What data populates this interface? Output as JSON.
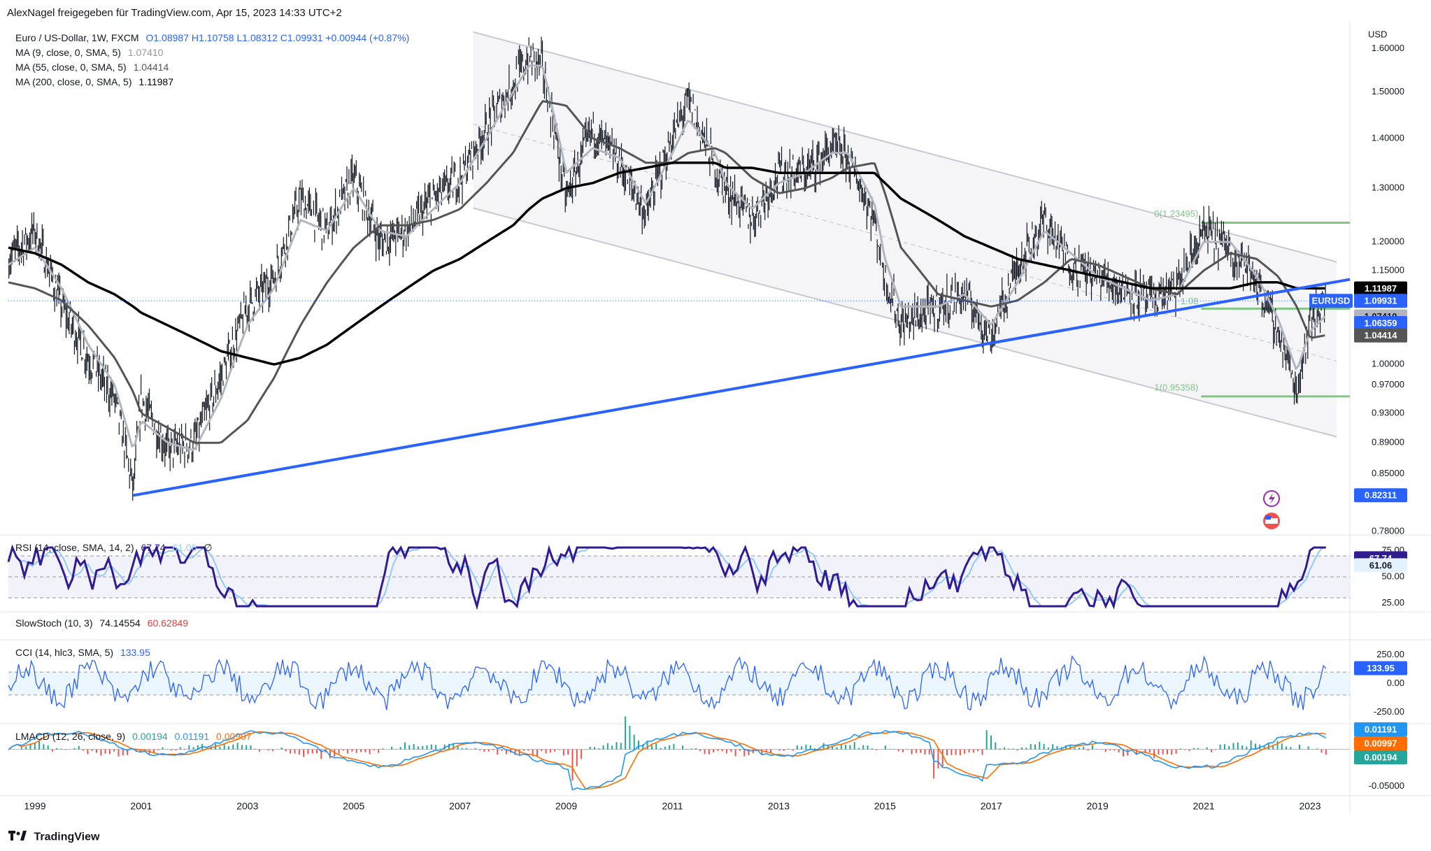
{
  "header": {
    "publisher": "AlexNagel freigegeben für TradingView.com, Apr 15, 2023 14:33 UTC+2"
  },
  "legend": {
    "main": {
      "label": "Euro / US-Dollar, 1W, FXCM",
      "ohlc": "O1.08987  H1.10758  L1.08312  C1.09931  +0.00944 (+0.87%)"
    },
    "ma9": {
      "label": "MA (9, close, 0, SMA, 5)",
      "value": "1.07410"
    },
    "ma55": {
      "label": "MA (55, close, 0, SMA, 5)",
      "value": "1.04414"
    },
    "ma200": {
      "label": "MA (200, close, 0, SMA, 5)",
      "value": "1.11987"
    },
    "rsi": {
      "label": "RSI (14, close, SMA, 14, 2)",
      "value": "67.74",
      "value2": "61.06",
      "value3": "∅"
    },
    "stoch": {
      "label": "SlowStoch (10, 3)",
      "value": "74.14554",
      "value2": "60.62849"
    },
    "cci": {
      "label": "CCI (14, hlc3, SMA, 5)",
      "value": "133.95"
    },
    "macd": {
      "label": "LMACD (12, 26, close, 9)",
      "value": "0.00194",
      "value2": "0.01191",
      "value3": "0.00997"
    }
  },
  "price_axis": {
    "currency": "USD",
    "ticks": [
      "1.60000",
      "1.50000",
      "1.40000",
      "1.30000",
      "1.20000",
      "1.15000",
      "1.10000",
      "1.05000",
      "1.00000",
      "0.97000",
      "0.93000",
      "0.89000",
      "0.85000",
      "0.78000"
    ],
    "badges": [
      {
        "text": "1.11987",
        "bg": "#000000",
        "fg": "#ffffff",
        "value": 1.11987
      },
      {
        "text": "1.09931",
        "bg": "#2962ff",
        "fg": "#ffffff",
        "value": 1.09931
      },
      {
        "text": "1.07410",
        "bg": "#b2b5be",
        "fg": "#131722",
        "value": 1.0741
      },
      {
        "text": "1.06359",
        "bg": "#2962ff",
        "fg": "#ffffff",
        "value": 1.06359
      },
      {
        "text": "1.04414",
        "bg": "#555555",
        "fg": "#ffffff",
        "value": 1.04414
      },
      {
        "text": "0.82311",
        "bg": "#2962ff",
        "fg": "#ffffff",
        "value": 0.82311
      }
    ],
    "symbol_tag": "EURUSD"
  },
  "rsi_axis": {
    "ticks": [
      "75.00",
      "50.00",
      "25.00"
    ],
    "badges": [
      "67.74",
      "61.06"
    ]
  },
  "cci_axis": {
    "ticks": [
      "250.00",
      "0.00",
      "-250.00"
    ],
    "badge": "133.95"
  },
  "macd_axis": {
    "ticks": [
      "-0.05000"
    ],
    "badges": [
      "0.01191",
      "0.00997",
      "0.00194"
    ]
  },
  "fib": {
    "top_label": "0(1.23495)",
    "bottom_label": "1(0.95358)",
    "mid_label": "1.08"
  },
  "x_axis": {
    "ticks": [
      "1999",
      "2001",
      "2003",
      "2005",
      "2007",
      "2009",
      "2011",
      "2013",
      "2015",
      "2017",
      "2019",
      "2021",
      "2023"
    ]
  },
  "footer": {
    "brand": "TradingView"
  },
  "colors": {
    "price": "#131722",
    "ma9": "#b2b5be",
    "ma55": "#555555",
    "ma200": "#000000",
    "trend": "#2962ff",
    "channel": "#c8c8d4",
    "fib": "#81c784",
    "rsi": "#311b92",
    "rsi_ma": "#90caf9",
    "cci": "#2962ff",
    "macd": "#2196f3",
    "signal": "#ff6d00",
    "hist_up": "#26a69a",
    "hist_dn": "#ef5350"
  },
  "chart_data": {
    "type": "line",
    "title": "Euro / US-Dollar, 1W, FXCM",
    "ylabel": "USD",
    "x": [
      1998.5,
      1999,
      1999.5,
      2000,
      2000.5,
      2000.85,
      2001,
      2001.5,
      2002,
      2002.5,
      2003,
      2003.5,
      2004,
      2004.5,
      2005,
      2005.5,
      2006,
      2006.5,
      2007,
      2007.5,
      2008,
      2008.3,
      2008.55,
      2009,
      2009.5,
      2010,
      2010.5,
      2011,
      2011.3,
      2011.8,
      2012,
      2012.5,
      2013,
      2013.5,
      2014,
      2014.3,
      2014.8,
      2015,
      2015.3,
      2016,
      2016.5,
      2017,
      2017.5,
      2018,
      2018.5,
      2019,
      2019.5,
      2020,
      2020.5,
      2021,
      2021.5,
      2022,
      2022.4,
      2022.75,
      2023,
      2023.28
    ],
    "series": [
      {
        "name": "EURUSD",
        "values": [
          1.17,
          1.22,
          1.09,
          1.01,
          0.95,
          0.83,
          0.95,
          0.88,
          0.89,
          0.98,
          1.09,
          1.14,
          1.28,
          1.22,
          1.32,
          1.2,
          1.22,
          1.28,
          1.32,
          1.42,
          1.52,
          1.58,
          1.56,
          1.28,
          1.42,
          1.35,
          1.25,
          1.4,
          1.48,
          1.34,
          1.3,
          1.24,
          1.33,
          1.33,
          1.38,
          1.36,
          1.24,
          1.14,
          1.06,
          1.09,
          1.11,
          1.04,
          1.16,
          1.24,
          1.16,
          1.14,
          1.12,
          1.1,
          1.12,
          1.22,
          1.19,
          1.13,
          1.05,
          0.96,
          1.07,
          1.0993
        ]
      },
      {
        "name": "MA (9, close, 0, SMA, 5)",
        "values": [
          1.16,
          1.19,
          1.12,
          1.03,
          0.97,
          0.88,
          0.92,
          0.89,
          0.88,
          0.95,
          1.06,
          1.12,
          1.24,
          1.22,
          1.3,
          1.22,
          1.21,
          1.26,
          1.31,
          1.4,
          1.5,
          1.56,
          1.56,
          1.33,
          1.38,
          1.36,
          1.27,
          1.37,
          1.44,
          1.37,
          1.31,
          1.26,
          1.31,
          1.33,
          1.37,
          1.37,
          1.27,
          1.17,
          1.09,
          1.09,
          1.11,
          1.06,
          1.13,
          1.22,
          1.18,
          1.14,
          1.12,
          1.1,
          1.11,
          1.2,
          1.2,
          1.14,
          1.07,
          0.99,
          1.05,
          1.0741
        ]
      },
      {
        "name": "MA (55, close, 0, SMA, 5)",
        "values": [
          1.13,
          1.12,
          1.1,
          1.06,
          1.01,
          0.96,
          0.93,
          0.91,
          0.89,
          0.89,
          0.92,
          0.98,
          1.06,
          1.13,
          1.19,
          1.23,
          1.23,
          1.24,
          1.26,
          1.31,
          1.37,
          1.43,
          1.48,
          1.47,
          1.4,
          1.38,
          1.35,
          1.35,
          1.37,
          1.38,
          1.37,
          1.32,
          1.29,
          1.3,
          1.32,
          1.34,
          1.35,
          1.29,
          1.19,
          1.11,
          1.1,
          1.09,
          1.1,
          1.13,
          1.17,
          1.16,
          1.14,
          1.12,
          1.11,
          1.15,
          1.18,
          1.17,
          1.14,
          1.09,
          1.04,
          1.04414
        ]
      },
      {
        "name": "MA (200, close, 0, SMA, 5)",
        "values": [
          1.19,
          1.18,
          1.16,
          1.13,
          1.11,
          1.09,
          1.08,
          1.06,
          1.04,
          1.02,
          1.01,
          1.0,
          1.01,
          1.03,
          1.06,
          1.09,
          1.12,
          1.15,
          1.17,
          1.2,
          1.23,
          1.26,
          1.28,
          1.3,
          1.31,
          1.33,
          1.34,
          1.35,
          1.35,
          1.35,
          1.34,
          1.34,
          1.33,
          1.33,
          1.33,
          1.33,
          1.33,
          1.31,
          1.28,
          1.24,
          1.21,
          1.19,
          1.17,
          1.16,
          1.15,
          1.14,
          1.13,
          1.12,
          1.12,
          1.12,
          1.12,
          1.13,
          1.13,
          1.12,
          1.12,
          1.11987
        ]
      }
    ],
    "xlim": [
      1998.5,
      2023.75
    ],
    "ylim": [
      0.78,
      1.65
    ],
    "log_scale": true
  }
}
